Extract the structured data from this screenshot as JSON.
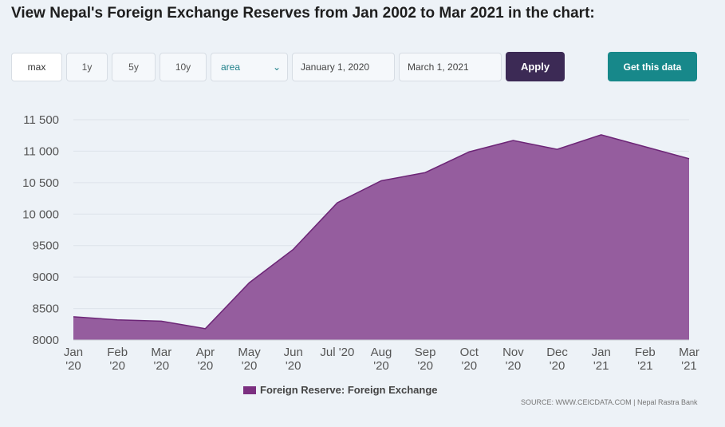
{
  "header": {
    "title": "View Nepal's Foreign Exchange Reserves from Jan 2002 to Mar 2021 in the chart:"
  },
  "controls": {
    "range_buttons": [
      "max",
      "1y",
      "5y",
      "10y"
    ],
    "chart_type_value": "area",
    "start_date": "January 1, 2020",
    "end_date": "March 1, 2021",
    "apply_label": "Apply",
    "get_data_label": "Get this data"
  },
  "colors": {
    "area_fill": "#955d9e",
    "area_line": "#6d2677",
    "legend_swatch": "#7b2f80",
    "apply_bg": "#3c2a55",
    "get_data_bg": "#17888a"
  },
  "chart_data": {
    "type": "area",
    "categories": [
      "Jan '20",
      "Feb '20",
      "Mar '20",
      "Apr '20",
      "May '20",
      "Jun '20",
      "Jul '20",
      "Aug '20",
      "Sep '20",
      "Oct '20",
      "Nov '20",
      "Dec '20",
      "Jan '21",
      "Feb '21",
      "Mar '21"
    ],
    "x_tick_labels": [
      [
        "Jan",
        "'20"
      ],
      [
        "Feb",
        "'20"
      ],
      [
        "Mar",
        "'20"
      ],
      [
        "Apr",
        "'20"
      ],
      [
        "May",
        "'20"
      ],
      [
        "Jun",
        "'20"
      ],
      [
        "Jul '20",
        ""
      ],
      [
        "Aug",
        "'20"
      ],
      [
        "Sep",
        "'20"
      ],
      [
        "Oct",
        "'20"
      ],
      [
        "Nov",
        "'20"
      ],
      [
        "Dec",
        "'20"
      ],
      [
        "Jan",
        "'21"
      ],
      [
        "Feb",
        "'21"
      ],
      [
        "Mar",
        "'21"
      ]
    ],
    "series": [
      {
        "name": "Foreign Reserve: Foreign Exchange",
        "values": [
          8370,
          8320,
          8300,
          8180,
          8910,
          9440,
          10180,
          10530,
          10660,
          10990,
          11170,
          11030,
          11260,
          11070,
          10880
        ]
      }
    ],
    "ylim": [
      8000,
      11500
    ],
    "y_ticks": [
      8000,
      8500,
      9000,
      9500,
      10000,
      10500,
      11000,
      11500
    ],
    "y_tick_labels": [
      "8000",
      "8500",
      "9000",
      "9500",
      "10 000",
      "10 500",
      "11 000",
      "11 500"
    ],
    "grid": true,
    "legend_position": "bottom",
    "legend_label": "Foreign Reserve: Foreign Exchange",
    "source": "SOURCE: WWW.CEICDATA.COM | Nepal Rastra Bank"
  }
}
